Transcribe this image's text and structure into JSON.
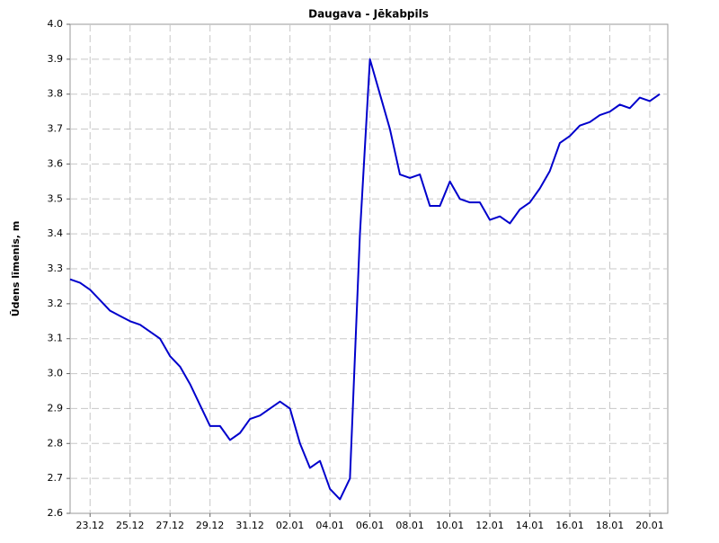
{
  "chart_data": {
    "type": "line",
    "title": "Daugava - Jēkabpils",
    "y_label": "Ūdens līmenis, m",
    "categories": [
      null,
      null,
      "23.12",
      null,
      null,
      null,
      "25.12",
      null,
      null,
      null,
      "27.12",
      null,
      null,
      null,
      "29.12",
      null,
      null,
      null,
      "31.12",
      null,
      null,
      null,
      "02.01",
      null,
      null,
      null,
      "04.01",
      null,
      null,
      null,
      "06.01",
      null,
      null,
      null,
      "08.01",
      null,
      null,
      null,
      "10.01",
      null,
      null,
      null,
      "12.01",
      null,
      null,
      null,
      "14.01",
      null,
      null,
      null,
      "16.01",
      null,
      null,
      null,
      "18.01",
      null,
      null,
      null,
      "20.01",
      null
    ],
    "series": [
      {
        "name": "Daugava - Jēkabpils",
        "color": "#0000cc",
        "values": [
          3.27,
          3.26,
          3.24,
          3.21,
          3.18,
          3.165,
          3.15,
          3.14,
          3.12,
          3.1,
          3.05,
          3.02,
          2.97,
          2.91,
          2.85,
          2.85,
          2.81,
          2.83,
          2.87,
          2.88,
          2.9,
          2.92,
          2.9,
          2.8,
          2.73,
          2.75,
          2.67,
          2.64,
          2.7,
          3.4,
          3.9,
          3.8,
          3.7,
          3.57,
          3.56,
          3.57,
          3.48,
          3.48,
          3.55,
          3.5,
          3.49,
          3.49,
          3.44,
          3.45,
          3.43,
          3.47,
          3.49,
          3.53,
          3.58,
          3.66,
          3.68,
          3.71,
          3.72,
          3.74,
          3.75,
          3.77,
          3.76,
          3.79,
          3.78,
          3.8
        ]
      }
    ],
    "ylim": [
      2.6,
      4.0
    ],
    "yticks": [
      2.6,
      2.7,
      2.8,
      2.9,
      {
        "value": 3.0,
        "label": "3.0"
      },
      3.1,
      3.2,
      3.3,
      3.4,
      3.5,
      3.6,
      3.7,
      3.8,
      3.9,
      {
        "value": 4.0,
        "label": "4.0"
      }
    ],
    "grid": true
  }
}
